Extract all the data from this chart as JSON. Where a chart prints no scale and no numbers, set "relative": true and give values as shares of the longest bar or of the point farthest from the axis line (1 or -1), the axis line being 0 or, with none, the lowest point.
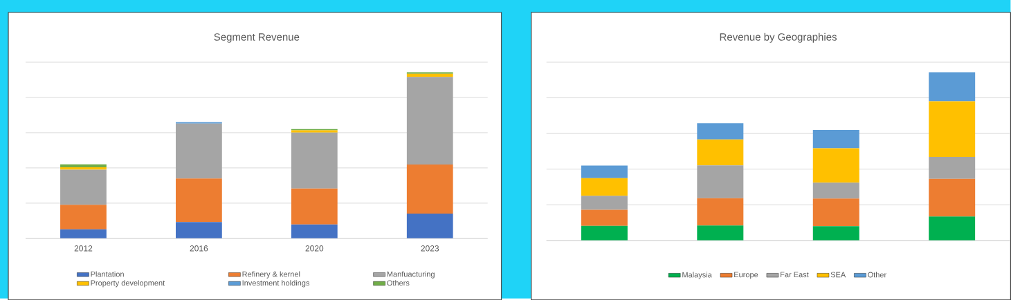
{
  "chart_data": [
    {
      "type": "bar",
      "title": "Segment Revenue",
      "categories": [
        "2012",
        "2016",
        "2020",
        "2023"
      ],
      "stacked": true,
      "relative": true,
      "grid": "y",
      "legend": "bottom",
      "series": [
        {
          "name": "Plantation",
          "color": "#4472c4",
          "values": [
            0.054,
            0.098,
            0.084,
            0.149
          ]
        },
        {
          "name": "Refinery & kernel",
          "color": "#ed7d31",
          "values": [
            0.148,
            0.262,
            0.216,
            0.295
          ]
        },
        {
          "name": "Manfuacturing",
          "color": "#a5a5a5",
          "values": [
            0.211,
            0.331,
            0.337,
            0.527
          ]
        },
        {
          "name": "Property development",
          "color": "#ffc000",
          "values": [
            0.015,
            0.0,
            0.013,
            0.019
          ]
        },
        {
          "name": "Investment holdings",
          "color": "#5b9bd5",
          "values": [
            0.0,
            0.008,
            0.0,
            0.0
          ]
        },
        {
          "name": "Others",
          "color": "#70ad47",
          "values": [
            0.017,
            0.0,
            0.008,
            0.01
          ]
        }
      ]
    },
    {
      "type": "bar",
      "title": "Revenue by Geographies",
      "categories": [
        null,
        null,
        null,
        null
      ],
      "stacked": true,
      "relative": true,
      "grid": "y",
      "legend": "bottom",
      "series": [
        {
          "name": "Malaysia",
          "color": "#00b050",
          "values": [
            0.087,
            0.089,
            0.085,
            0.142
          ]
        },
        {
          "name": "Europe",
          "color": "#ed7d31",
          "values": [
            0.095,
            0.162,
            0.164,
            0.224
          ]
        },
        {
          "name": "Far East",
          "color": "#a5a5a5",
          "values": [
            0.084,
            0.195,
            0.095,
            0.131
          ]
        },
        {
          "name": "SEA",
          "color": "#ffc000",
          "values": [
            0.104,
            0.155,
            0.204,
            0.331
          ]
        },
        {
          "name": "Other",
          "color": "#5b9bd5",
          "values": [
            0.075,
            0.096,
            0.109,
            0.172
          ]
        }
      ]
    }
  ]
}
